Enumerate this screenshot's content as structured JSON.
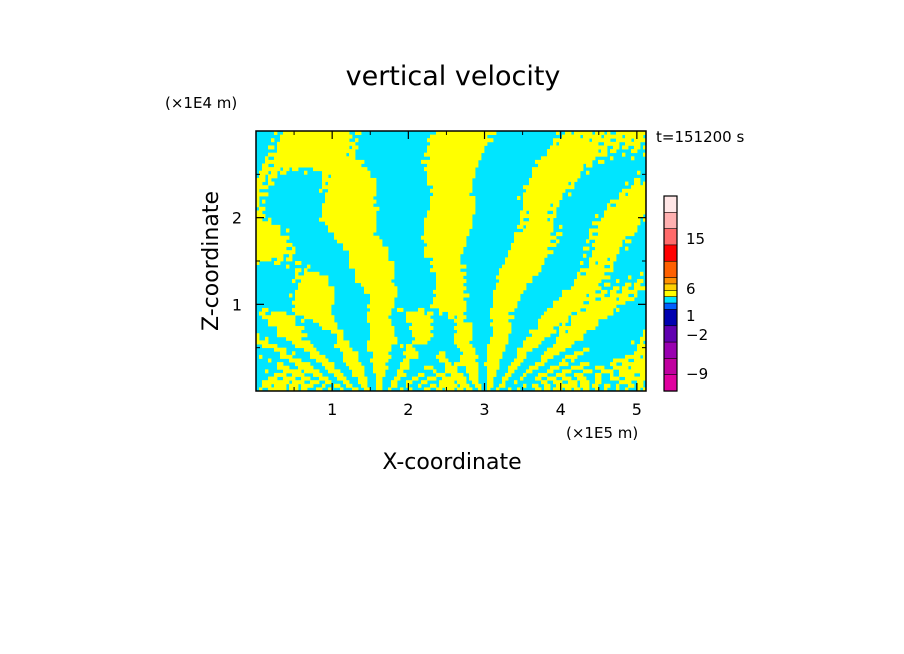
{
  "chart_data": {
    "type": "heatmap",
    "title": "vertical velocity",
    "xlabel": "X-coordinate",
    "ylabel": "Z-coordinate",
    "x_unit": "(×1E5 m)",
    "y_unit": "(×1E4 m)",
    "time_label": "t=151200 s",
    "xlim": [
      0,
      5.12
    ],
    "ylim": [
      0,
      3.0
    ],
    "x_ticks": [
      1,
      2,
      3,
      4,
      5
    ],
    "y_ticks": [
      1,
      2
    ],
    "colors": {
      "positive": "#ffff00",
      "negative": "#00e5ff"
    },
    "colorbar": {
      "levels": [
        {
          "color": "#e0009f"
        },
        {
          "color": "#c0009f"
        },
        {
          "color": "#9900b0"
        },
        {
          "color": "#6000b0"
        },
        {
          "color": "#0000b0"
        },
        {
          "color": "#0060ff"
        },
        {
          "color": "#00e5ff"
        },
        {
          "color": "#ffff00"
        },
        {
          "color": "#ffd000"
        },
        {
          "color": "#ff9000"
        },
        {
          "color": "#ff6000"
        },
        {
          "color": "#ff0000"
        },
        {
          "color": "#ff6a6a"
        },
        {
          "color": "#ffb0b0"
        },
        {
          "color": "#ffe6e6"
        }
      ],
      "labels": [
        "15",
        "6",
        "1",
        "−2",
        "−9"
      ]
    }
  }
}
